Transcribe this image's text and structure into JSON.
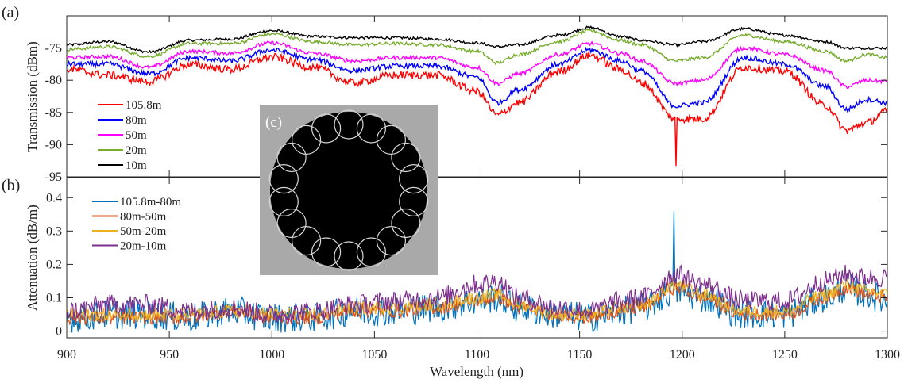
{
  "chart_data": [
    {
      "panel_label": "(a)",
      "type": "line",
      "xlabel": "Wavelength (nm)",
      "ylabel": "Transmission (dBm)",
      "xlim": [
        900,
        1300
      ],
      "ylim": [
        -95,
        -70
      ],
      "xticks": [
        900,
        950,
        1000,
        1050,
        1100,
        1150,
        1200,
        1250,
        1300
      ],
      "yticks": [
        -95,
        -90,
        -85,
        -80,
        -75
      ],
      "legend_position": "lower-left",
      "x": [
        900,
        920,
        940,
        960,
        980,
        1000,
        1020,
        1040,
        1060,
        1080,
        1100,
        1110,
        1120,
        1140,
        1155,
        1170,
        1180,
        1197,
        1210,
        1230,
        1250,
        1270,
        1280,
        1290,
        1300
      ],
      "series": [
        {
          "name": "105.8m",
          "color": "#ff0000",
          "noise": 0.6,
          "values": [
            -78.3,
            -79.2,
            -80.2,
            -77.6,
            -78.3,
            -76.4,
            -78,
            -80.4,
            -79.2,
            -79.2,
            -81.7,
            -85.4,
            -83.5,
            -78.6,
            -76.1,
            -78.3,
            -80.4,
            -86,
            -86,
            -78,
            -78.6,
            -84,
            -87.8,
            -86.6,
            -84.8
          ]
        },
        {
          "name": "80m",
          "color": "#0000ff",
          "noise": 0.4,
          "values": [
            -77.5,
            -77.5,
            -79,
            -76.5,
            -77,
            -75.3,
            -76.8,
            -78.5,
            -77.8,
            -77.8,
            -79.5,
            -83.5,
            -81.5,
            -77.5,
            -75.3,
            -77,
            -78.5,
            -84,
            -83.5,
            -76.5,
            -77.5,
            -81,
            -84.5,
            -83,
            -83.5
          ]
        },
        {
          "name": "50m",
          "color": "#ff00ff",
          "noise": 0.3,
          "values": [
            -76.5,
            -76.3,
            -78,
            -75.5,
            -75.8,
            -74.2,
            -75.8,
            -77,
            -76.5,
            -76.5,
            -78,
            -80.5,
            -79,
            -76,
            -74.3,
            -75.8,
            -77,
            -80.5,
            -80,
            -75,
            -76,
            -78.5,
            -81,
            -80,
            -80.2
          ]
        },
        {
          "name": "20m",
          "color": "#77ac30",
          "noise": 0.25,
          "values": [
            -75.2,
            -74.8,
            -76.3,
            -74.3,
            -74.3,
            -72.8,
            -74,
            -74.5,
            -74.3,
            -74.5,
            -75.5,
            -77.3,
            -76,
            -74,
            -72.3,
            -73.8,
            -74.5,
            -77,
            -76.5,
            -73,
            -74,
            -75.5,
            -77,
            -76,
            -76.5
          ]
        },
        {
          "name": "10m",
          "color": "#000000",
          "noise": 0.2,
          "values": [
            -74.5,
            -74,
            -75.6,
            -73.8,
            -73.6,
            -72.3,
            -73.2,
            -73.4,
            -73.4,
            -73.6,
            -74.2,
            -74.8,
            -74.5,
            -73,
            -71.8,
            -73.2,
            -73.8,
            -74.5,
            -74,
            -72,
            -73,
            -74,
            -75,
            -75,
            -75
          ]
        }
      ],
      "spikes": [
        {
          "series": "105.8m",
          "x": 1197,
          "y": -93.3
        }
      ]
    },
    {
      "panel_label": "(b)",
      "type": "line",
      "xlabel": "Wavelength (nm)",
      "ylabel": "Attenuation (dB/m)",
      "xlim": [
        900,
        1300
      ],
      "ylim": [
        -0.02,
        0.46
      ],
      "xticks": [
        900,
        950,
        1000,
        1050,
        1100,
        1150,
        1200,
        1250,
        1300
      ],
      "yticks": [
        0,
        0.1,
        0.2,
        0.3,
        0.4
      ],
      "ytick_labels": [
        "0",
        "0.1",
        "0.2",
        "0.3",
        "0.4"
      ],
      "legend_position": "upper-left",
      "x": [
        900,
        920,
        940,
        960,
        980,
        1000,
        1020,
        1040,
        1060,
        1080,
        1100,
        1110,
        1120,
        1140,
        1155,
        1170,
        1180,
        1197,
        1210,
        1230,
        1250,
        1270,
        1280,
        1290,
        1300
      ],
      "series": [
        {
          "name": "105.8m-80m",
          "color": "#0072bd",
          "noise": 0.045,
          "values": [
            0.04,
            0.05,
            0.05,
            0.04,
            0.06,
            0.04,
            0.04,
            0.06,
            0.06,
            0.07,
            0.09,
            0.1,
            0.07,
            0.05,
            0.04,
            0.06,
            0.07,
            0.12,
            0.1,
            0.05,
            0.05,
            0.1,
            0.13,
            0.11,
            0.09
          ]
        },
        {
          "name": "80m-50m",
          "color": "#d95319",
          "noise": 0.02,
          "values": [
            0.04,
            0.04,
            0.04,
            0.04,
            0.06,
            0.04,
            0.04,
            0.06,
            0.06,
            0.07,
            0.09,
            0.1,
            0.07,
            0.05,
            0.04,
            0.06,
            0.07,
            0.13,
            0.1,
            0.05,
            0.05,
            0.1,
            0.13,
            0.11,
            0.1
          ]
        },
        {
          "name": "50m-20m",
          "color": "#edb120",
          "noise": 0.02,
          "values": [
            0.05,
            0.05,
            0.05,
            0.05,
            0.06,
            0.05,
            0.05,
            0.07,
            0.07,
            0.08,
            0.1,
            0.11,
            0.08,
            0.05,
            0.05,
            0.07,
            0.08,
            0.14,
            0.11,
            0.06,
            0.06,
            0.11,
            0.14,
            0.12,
            0.11
          ]
        },
        {
          "name": "20m-10m",
          "color": "#7e2f8e",
          "noise": 0.03,
          "values": [
            0.06,
            0.08,
            0.08,
            0.06,
            0.07,
            0.05,
            0.06,
            0.08,
            0.09,
            0.1,
            0.14,
            0.15,
            0.1,
            0.07,
            0.06,
            0.09,
            0.1,
            0.17,
            0.14,
            0.09,
            0.09,
            0.15,
            0.17,
            0.16,
            0.16
          ]
        }
      ],
      "spikes": [
        {
          "series": "105.8m-80m",
          "x": 1196,
          "y": 0.36
        }
      ]
    }
  ],
  "inset": {
    "label": "(c)"
  }
}
